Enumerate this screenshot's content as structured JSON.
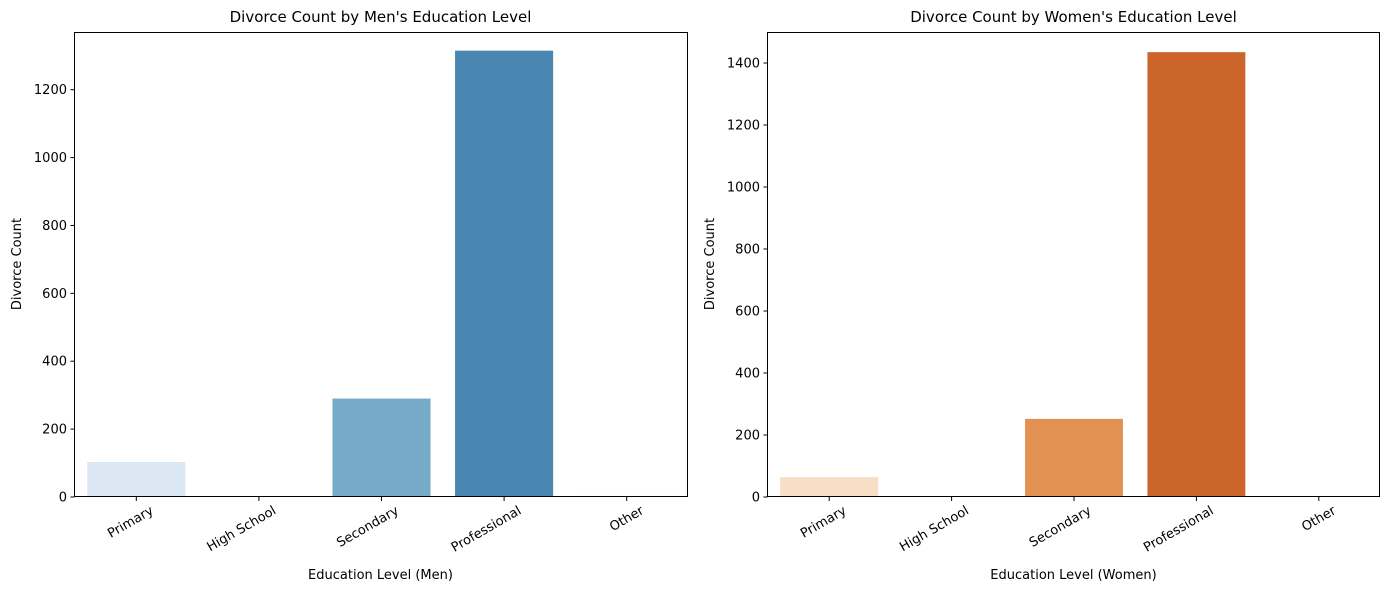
{
  "chart_data": [
    {
      "type": "bar",
      "title": "Divorce Count by Men's Education Level",
      "xlabel": "Education Level (Men)",
      "ylabel": "Divorce Count",
      "categories": [
        "Primary",
        "High School",
        "Secondary",
        "Professional",
        "Other"
      ],
      "values": [
        103,
        0,
        290,
        1315,
        3
      ],
      "ylim": [
        0,
        1370
      ],
      "yticks": [
        0,
        200,
        400,
        600,
        800,
        1000,
        1200
      ],
      "bar_colors": [
        "#dbe8f4",
        "#b6d4e9",
        "#77aac9",
        "#4986b2",
        "#0f4b92"
      ],
      "grid": false,
      "legend": "none"
    },
    {
      "type": "bar",
      "title": "Divorce Count by Women's Education Level",
      "xlabel": "Education Level (Women)",
      "ylabel": "Divorce Count",
      "categories": [
        "Primary",
        "High School",
        "Secondary",
        "Professional",
        "Other"
      ],
      "values": [
        64,
        0,
        252,
        1435,
        3
      ],
      "ylim": [
        0,
        1500
      ],
      "yticks": [
        0,
        200,
        400,
        600,
        800,
        1000,
        1200,
        1400
      ],
      "bar_colors": [
        "#f7dec5",
        "#f9b98a",
        "#e39152",
        "#cb6529",
        "#842f10"
      ],
      "grid": false,
      "legend": "none"
    }
  ]
}
